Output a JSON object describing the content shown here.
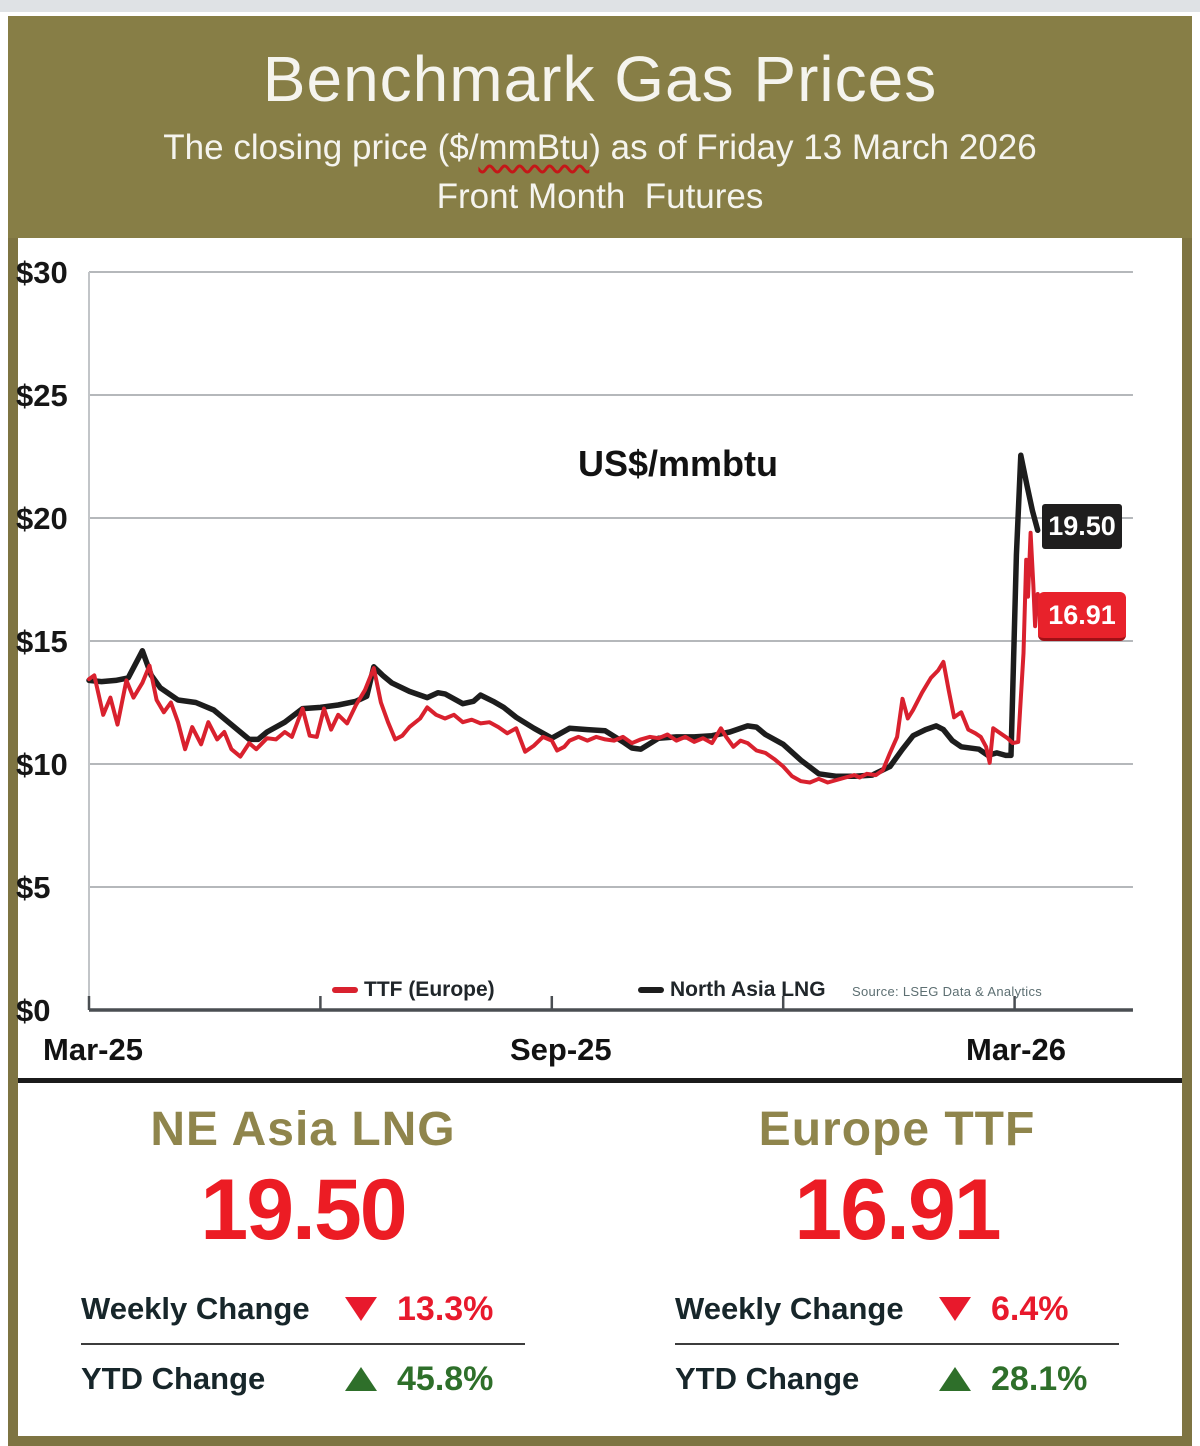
{
  "header": {
    "title": "Benchmark Gas Prices",
    "subtitle_prefix": "The closing price ($/",
    "subtitle_unit": "mmBtu",
    "subtitle_suffix": ") as of Friday 13 March 2026",
    "line3": "Front Month  Futures"
  },
  "chart_data": {
    "type": "line",
    "title": "US$/mmbtu",
    "yticks": [
      "$30",
      "$25",
      "$20",
      "$15",
      "$10",
      "$5",
      "$0"
    ],
    "ytick_values": [
      30,
      25,
      20,
      15,
      10,
      5,
      0
    ],
    "ylim": [
      0,
      31.5
    ],
    "grid": true,
    "x_axis_labels": [
      "Mar-25",
      "Sep-25",
      "Mar-26"
    ],
    "xticks_weeks": [
      0,
      13,
      26,
      39,
      52
    ],
    "plot_right_week": 58.65,
    "legend_position": "bottom",
    "legend": [
      {
        "name": "TTF (Europe)",
        "color": "#d9212e"
      },
      {
        "name": "North Asia LNG",
        "color": "#1d1d1d"
      }
    ],
    "source_note": "Source: LSEG Data & Analytics",
    "end_labels": [
      {
        "text": "19.50",
        "color": "#1f1e1e"
      },
      {
        "text": "16.91",
        "color": "#e8222b"
      }
    ],
    "series": [
      {
        "name": "North Asia LNG",
        "color": "#1d1d1d",
        "points": [
          [
            0,
            13.4
          ],
          [
            0.7,
            13.35
          ],
          [
            1.5,
            13.4
          ],
          [
            2.2,
            13.5
          ],
          [
            3,
            14.6
          ],
          [
            3.5,
            13.6
          ],
          [
            4,
            13.1
          ],
          [
            5,
            12.6
          ],
          [
            6,
            12.5
          ],
          [
            7,
            12.2
          ],
          [
            8,
            11.6
          ],
          [
            9,
            11.0
          ],
          [
            9.5,
            11.0
          ],
          [
            10,
            11.3
          ],
          [
            11,
            11.7
          ],
          [
            12,
            12.25
          ],
          [
            13,
            12.3
          ],
          [
            14,
            12.4
          ],
          [
            15,
            12.55
          ],
          [
            15.6,
            12.75
          ],
          [
            16,
            13.95
          ],
          [
            16.5,
            13.6
          ],
          [
            17,
            13.3
          ],
          [
            18,
            12.95
          ],
          [
            19,
            12.7
          ],
          [
            19.6,
            12.9
          ],
          [
            20,
            12.85
          ],
          [
            21,
            12.45
          ],
          [
            21.6,
            12.55
          ],
          [
            22,
            12.8
          ],
          [
            22.7,
            12.55
          ],
          [
            23.3,
            12.3
          ],
          [
            24,
            11.9
          ],
          [
            25,
            11.45
          ],
          [
            26,
            11.05
          ],
          [
            27,
            11.45
          ],
          [
            28,
            11.4
          ],
          [
            29,
            11.35
          ],
          [
            30,
            10.9
          ],
          [
            30.5,
            10.65
          ],
          [
            31,
            10.6
          ],
          [
            32,
            11.05
          ],
          [
            33,
            11.1
          ],
          [
            34,
            11.1
          ],
          [
            35,
            11.15
          ],
          [
            36,
            11.3
          ],
          [
            37,
            11.55
          ],
          [
            37.5,
            11.5
          ],
          [
            38,
            11.2
          ],
          [
            39,
            10.8
          ],
          [
            40,
            10.15
          ],
          [
            41,
            9.6
          ],
          [
            42,
            9.5
          ],
          [
            43,
            9.5
          ],
          [
            44,
            9.55
          ],
          [
            45,
            9.9
          ],
          [
            45.7,
            10.6
          ],
          [
            46.3,
            11.15
          ],
          [
            47,
            11.4
          ],
          [
            47.6,
            11.55
          ],
          [
            48,
            11.4
          ],
          [
            48.5,
            10.95
          ],
          [
            49,
            10.7
          ],
          [
            50,
            10.6
          ],
          [
            50.5,
            10.35
          ],
          [
            51,
            10.45
          ],
          [
            51.5,
            10.35
          ],
          [
            51.8,
            10.35
          ],
          [
            52.1,
            18.5
          ],
          [
            52.35,
            22.55
          ],
          [
            52.7,
            21.3
          ],
          [
            53.0,
            20.3
          ],
          [
            53.3,
            19.5
          ]
        ]
      },
      {
        "name": "TTF (Europe)",
        "color": "#d9212e",
        "points": [
          [
            0,
            13.45
          ],
          [
            0.3,
            13.6
          ],
          [
            0.8,
            12.0
          ],
          [
            1.2,
            12.7
          ],
          [
            1.6,
            11.6
          ],
          [
            2.1,
            13.4
          ],
          [
            2.5,
            12.7
          ],
          [
            3,
            13.3
          ],
          [
            3.4,
            14.0
          ],
          [
            3.8,
            12.6
          ],
          [
            4.2,
            12.1
          ],
          [
            4.6,
            12.5
          ],
          [
            5,
            11.7
          ],
          [
            5.4,
            10.6
          ],
          [
            5.8,
            11.5
          ],
          [
            6.3,
            10.8
          ],
          [
            6.7,
            11.7
          ],
          [
            7.2,
            11.0
          ],
          [
            7.6,
            11.3
          ],
          [
            8,
            10.6
          ],
          [
            8.5,
            10.3
          ],
          [
            9,
            10.85
          ],
          [
            9.4,
            10.6
          ],
          [
            10,
            11.05
          ],
          [
            10.5,
            11.0
          ],
          [
            11,
            11.3
          ],
          [
            11.4,
            11.1
          ],
          [
            12,
            12.25
          ],
          [
            12.4,
            11.15
          ],
          [
            12.8,
            11.1
          ],
          [
            13.2,
            12.25
          ],
          [
            13.6,
            11.4
          ],
          [
            14,
            12.0
          ],
          [
            14.5,
            11.65
          ],
          [
            15,
            12.4
          ],
          [
            15.5,
            13.0
          ],
          [
            16,
            13.9
          ],
          [
            16.4,
            12.5
          ],
          [
            16.8,
            11.7
          ],
          [
            17.2,
            11.0
          ],
          [
            17.6,
            11.15
          ],
          [
            18,
            11.5
          ],
          [
            18.6,
            11.85
          ],
          [
            19,
            12.3
          ],
          [
            19.5,
            12.0
          ],
          [
            20,
            11.85
          ],
          [
            20.5,
            12.0
          ],
          [
            21,
            11.7
          ],
          [
            21.5,
            11.8
          ],
          [
            22,
            11.65
          ],
          [
            22.5,
            11.7
          ],
          [
            23,
            11.5
          ],
          [
            23.5,
            11.25
          ],
          [
            24,
            11.45
          ],
          [
            24.5,
            10.5
          ],
          [
            25,
            10.75
          ],
          [
            25.5,
            11.1
          ],
          [
            26,
            10.95
          ],
          [
            26.3,
            10.55
          ],
          [
            26.7,
            10.7
          ],
          [
            27,
            10.95
          ],
          [
            27.5,
            11.1
          ],
          [
            28,
            10.95
          ],
          [
            28.5,
            11.1
          ],
          [
            29,
            11.0
          ],
          [
            29.5,
            10.95
          ],
          [
            30,
            11.1
          ],
          [
            30.5,
            10.85
          ],
          [
            31,
            11.0
          ],
          [
            31.5,
            11.1
          ],
          [
            32,
            11.05
          ],
          [
            32.5,
            11.2
          ],
          [
            33,
            10.95
          ],
          [
            33.5,
            11.1
          ],
          [
            34,
            10.9
          ],
          [
            34.5,
            11.05
          ],
          [
            35,
            10.85
          ],
          [
            35.5,
            11.45
          ],
          [
            35.8,
            11.1
          ],
          [
            36.2,
            10.7
          ],
          [
            36.6,
            10.95
          ],
          [
            37,
            10.85
          ],
          [
            37.5,
            10.55
          ],
          [
            38,
            10.45
          ],
          [
            38.5,
            10.2
          ],
          [
            39,
            9.9
          ],
          [
            39.5,
            9.5
          ],
          [
            40,
            9.3
          ],
          [
            40.5,
            9.25
          ],
          [
            41,
            9.4
          ],
          [
            41.5,
            9.25
          ],
          [
            42,
            9.35
          ],
          [
            42.5,
            9.45
          ],
          [
            43,
            9.55
          ],
          [
            43.3,
            9.45
          ],
          [
            43.7,
            9.6
          ],
          [
            44.2,
            9.55
          ],
          [
            44.6,
            9.75
          ],
          [
            45,
            10.45
          ],
          [
            45.4,
            11.1
          ],
          [
            45.7,
            12.65
          ],
          [
            46,
            11.85
          ],
          [
            46.3,
            12.2
          ],
          [
            46.8,
            12.9
          ],
          [
            47.3,
            13.5
          ],
          [
            47.7,
            13.8
          ],
          [
            48,
            14.15
          ],
          [
            48.3,
            13.0
          ],
          [
            48.6,
            11.9
          ],
          [
            49,
            12.1
          ],
          [
            49.4,
            11.4
          ],
          [
            49.8,
            11.25
          ],
          [
            50.1,
            11.1
          ],
          [
            50.4,
            10.7
          ],
          [
            50.6,
            10.05
          ],
          [
            50.8,
            11.45
          ],
          [
            51.2,
            11.25
          ],
          [
            51.6,
            11.05
          ],
          [
            51.9,
            10.85
          ],
          [
            52.2,
            10.9
          ],
          [
            52.5,
            14.5
          ],
          [
            52.65,
            18.3
          ],
          [
            52.75,
            16.8
          ],
          [
            52.9,
            19.4
          ],
          [
            53.05,
            17.3
          ],
          [
            53.15,
            15.6
          ],
          [
            53.3,
            16.91
          ]
        ]
      }
    ]
  },
  "panels": [
    {
      "title": "NE Asia LNG",
      "value": "19.50",
      "weekly_label": "Weekly Change",
      "weekly_change": "13.3%",
      "ytd_label": "YTD Change",
      "ytd_change": "45.8%"
    },
    {
      "title": "Europe TTF",
      "value": "16.91",
      "weekly_label": "Weekly Change",
      "weekly_change": "6.4%",
      "ytd_label": "YTD Change",
      "ytd_change": "28.1%"
    }
  ],
  "colors": {
    "header_bg": "#877e46",
    "frame_border": "#7e7442",
    "value_red": "#ec1c24",
    "change_red": "#e8192c",
    "change_green": "#2e6f2a",
    "gold_text": "#8f854c",
    "gridline": "#b5b8bb",
    "axis": "#4a4e52"
  }
}
